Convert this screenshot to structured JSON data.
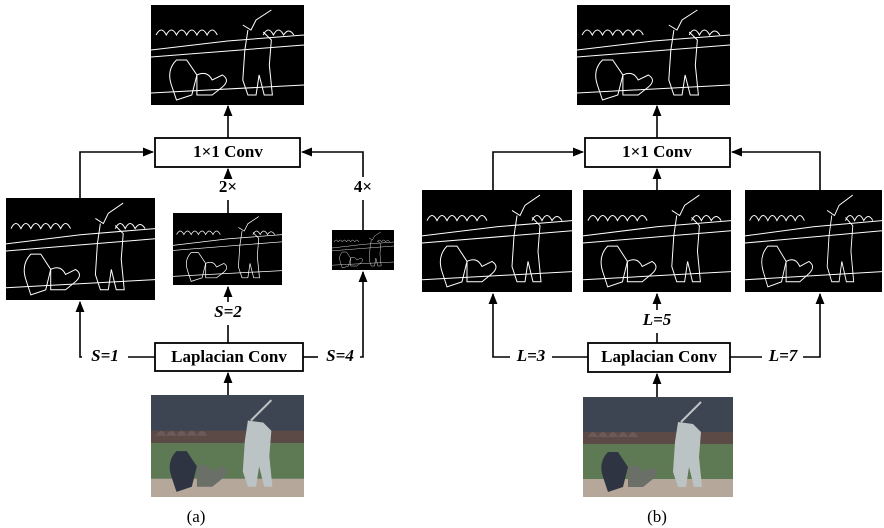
{
  "panels": [
    {
      "caption": "(a)",
      "conv": "1×1 Conv",
      "laplacian": "Laplacian Conv",
      "branches": [
        "S=1",
        "S=2",
        "S=4"
      ],
      "upsample": [
        "2×",
        "4×"
      ]
    },
    {
      "caption": "(b)",
      "conv": "1×1 Conv",
      "laplacian": "Laplacian Conv",
      "branches": [
        "L=3",
        "L=5",
        "L=7"
      ]
    }
  ]
}
